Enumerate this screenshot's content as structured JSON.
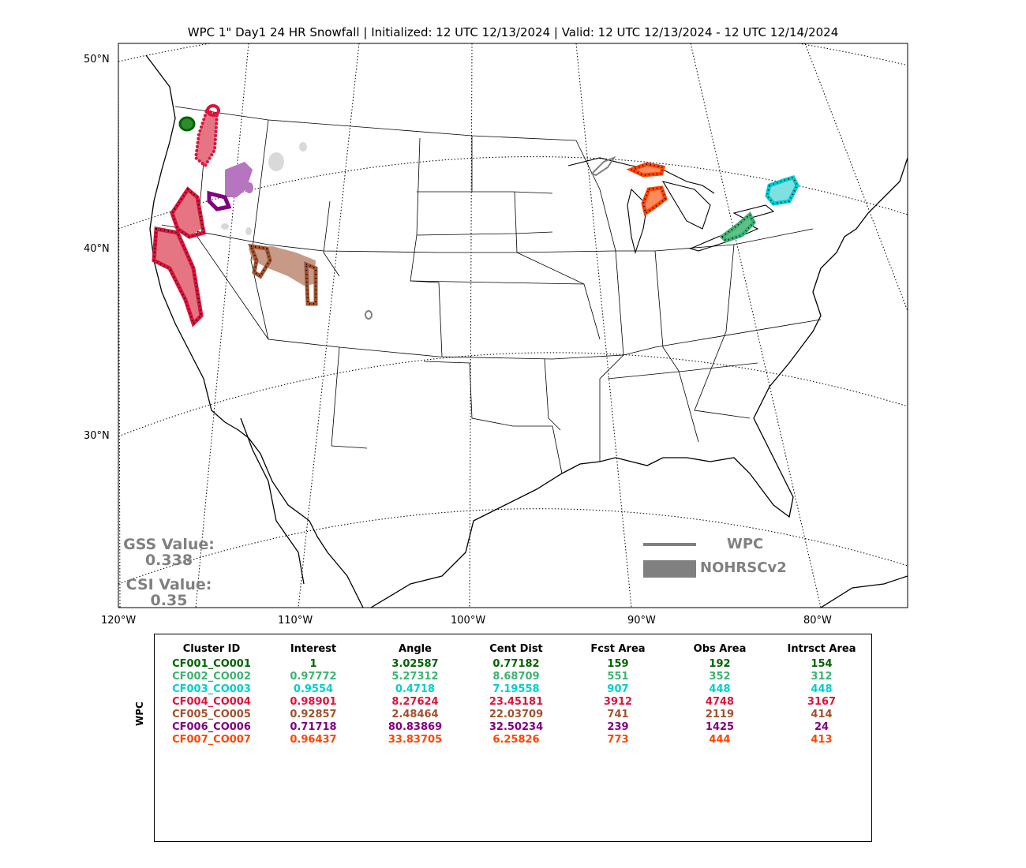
{
  "title": "WPC 1\" Day1 24 HR Snowfall | Initialized: 12 UTC 12/13/2024 | Valid: 12 UTC 12/13/2024 - 12 UTC 12/14/2024",
  "lat_labels": [
    "50°N",
    "40°N",
    "30°N"
  ],
  "lon_labels": [
    "120°W",
    "110°W",
    "100°W",
    "90°W",
    "80°W"
  ],
  "scores": {
    "gss_label": "GSS Value:",
    "gss_value": "0.338",
    "csi_label": "CSI Value:",
    "csi_value": "0.35"
  },
  "legend": {
    "line_label": "WPC",
    "fill_label": "NOHRSCv2",
    "color": "#808080"
  },
  "table": {
    "side_label": "WPC",
    "headers": [
      "Cluster ID",
      "Interest",
      "Angle",
      "Cent Dist",
      "Fcst Area",
      "Obs Area",
      "Intrsct Area"
    ],
    "rows": [
      {
        "color": "#006400",
        "cells": [
          "CF001_CO001",
          "1",
          "3.02587",
          "0.77182",
          "159",
          "192",
          "154"
        ]
      },
      {
        "color": "#3cb371",
        "cells": [
          "CF002_CO002",
          "0.97772",
          "5.27312",
          "8.68709",
          "551",
          "352",
          "312"
        ]
      },
      {
        "color": "#00ced1",
        "cells": [
          "CF003_CO003",
          "0.9554",
          "0.4718",
          "7.19558",
          "907",
          "448",
          "448"
        ]
      },
      {
        "color": "#dc143c",
        "cells": [
          "CF004_CO004",
          "0.98901",
          "8.27624",
          "23.45181",
          "3912",
          "4748",
          "3167"
        ]
      },
      {
        "color": "#a0522d",
        "cells": [
          "CF005_CO005",
          "0.92857",
          "2.48464",
          "22.03709",
          "741",
          "2119",
          "414"
        ]
      },
      {
        "color": "#800080",
        "cells": [
          "CF006_CO006",
          "0.71718",
          "80.83869",
          "32.50234",
          "239",
          "1425",
          "24"
        ]
      },
      {
        "color": "#ff4500",
        "cells": [
          "CF007_CO007",
          "0.96437",
          "33.83705",
          "6.25826",
          "773",
          "444",
          "413"
        ]
      }
    ]
  }
}
